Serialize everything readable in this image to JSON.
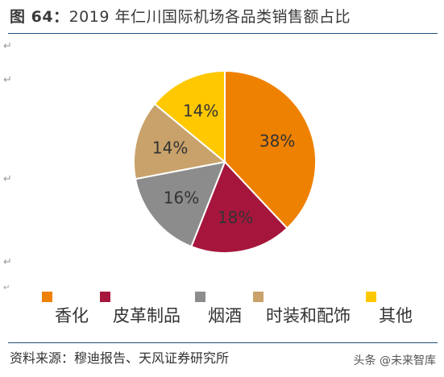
{
  "title": {
    "figure_label": "图 64：",
    "text": "2019 年仁川国际机场各品类销售额占比"
  },
  "chart_data": {
    "type": "pie",
    "title": "2019 年仁川国际机场各品类销售额占比",
    "categories": [
      "香化",
      "皮革制品",
      "烟酒",
      "时装和配饰",
      "其他"
    ],
    "values": [
      38,
      18,
      16,
      14,
      14
    ],
    "value_labels": [
      "38%",
      "18%",
      "16%",
      "14%",
      "14%"
    ],
    "colors": [
      "#EF8100",
      "#A6163C",
      "#8C8C8C",
      "#C8A26A",
      "#FFC800"
    ],
    "start_angle_deg": 0,
    "direction": "clockwise",
    "legend_position": "bottom"
  },
  "source": "资料来源：穆迪报告、天风证券研究所",
  "watermark": "头条 @未来智库"
}
